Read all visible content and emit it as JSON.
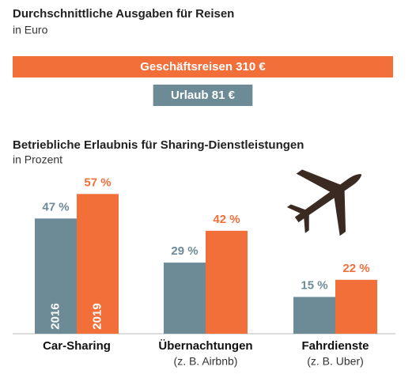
{
  "chart_data": [
    {
      "type": "hbar",
      "title": "Durchschnittliche Ausgaben für Reisen",
      "subtitle": "in Euro",
      "categories": [
        "Geschäftsreisen",
        "Urlaub"
      ],
      "values": [
        310,
        81
      ],
      "value_labels": [
        "310 €",
        "81 €"
      ],
      "colors": [
        "#f26f3a",
        "#6d8b96"
      ]
    },
    {
      "type": "grouped-bar",
      "title": "Betriebliche Erlaubnis für Sharing-Dienstleistungen",
      "subtitle": "in Prozent",
      "categories": [
        "Car-Sharing",
        "Übernachtungen",
        "Fahrdienste"
      ],
      "category_notes": [
        null,
        "(z. B. Airbnb)",
        "(z. B. Uber)"
      ],
      "series": [
        {
          "name": "2016",
          "color": "#6d8b96",
          "values": [
            47,
            29,
            15
          ],
          "value_labels": [
            "47 %",
            "29 %",
            "15 %"
          ]
        },
        {
          "name": "2019",
          "color": "#f26f3a",
          "values": [
            57,
            42,
            22
          ],
          "value_labels": [
            "57 %",
            "42 %",
            "22 %"
          ]
        }
      ]
    }
  ]
}
